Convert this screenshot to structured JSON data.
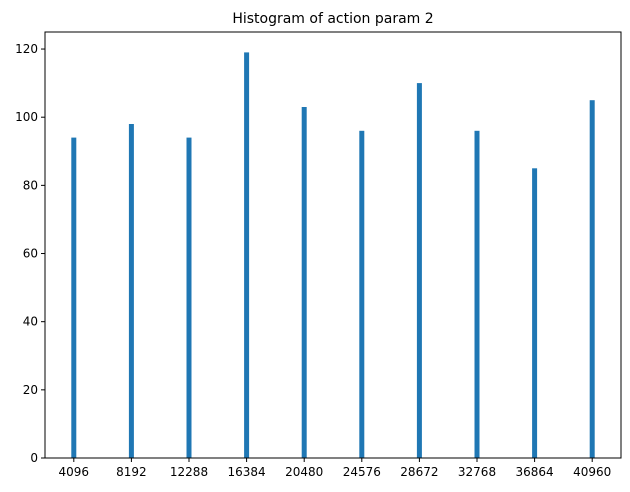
{
  "chart_data": {
    "type": "bar",
    "title": "Histogram of action param 2",
    "xlabel": "",
    "ylabel": "",
    "x": [
      4096,
      8192,
      12288,
      16384,
      20480,
      24576,
      28672,
      32768,
      36864,
      40960
    ],
    "categories": [
      "4096",
      "8192",
      "12288",
      "16384",
      "20480",
      "24576",
      "28672",
      "32768",
      "36864",
      "40960"
    ],
    "values": [
      94,
      98,
      94,
      119,
      103,
      96,
      110,
      96,
      85,
      105
    ],
    "xlim": [
      2048,
      43008
    ],
    "ylim": [
      0,
      125
    ],
    "yticks": [
      0,
      20,
      40,
      60,
      80,
      100,
      120
    ],
    "ytick_labels": [
      "0",
      "20",
      "40",
      "60",
      "80",
      "100",
      "120"
    ],
    "bar_color": "#1f77b4",
    "grid": false,
    "legend": false
  }
}
